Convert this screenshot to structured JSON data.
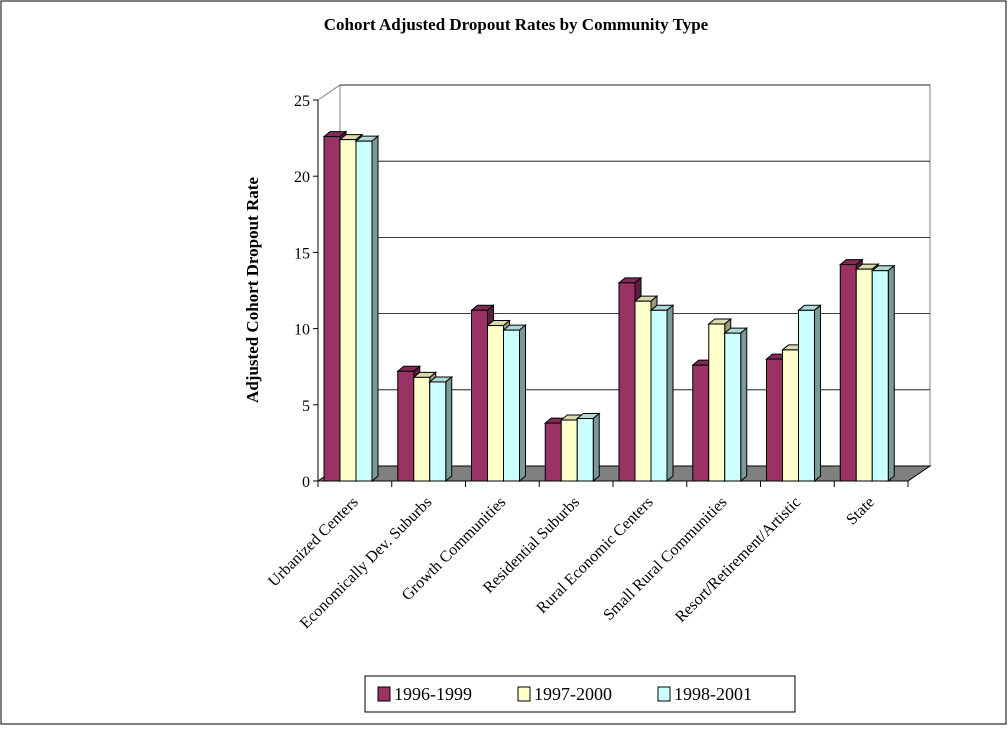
{
  "chart_data": {
    "type": "bar3d",
    "title": "Cohort Adjusted Dropout Rates by Community Type",
    "y_label": "Adjusted Cohort Dropout Rate",
    "categories": [
      "Urbanized Centers",
      "Economically Dev. Suburbs",
      "Growth Communities",
      "Residential Suburbs",
      "Rural Economic Centers",
      "Small Rural Communities",
      "Resort/Retirement/Artistic",
      "State"
    ],
    "series": [
      {
        "name": "1996-1999",
        "color": "#993366",
        "values": [
          22.6,
          7.2,
          11.2,
          3.8,
          13.0,
          7.6,
          8.0,
          14.2
        ]
      },
      {
        "name": "1997-2000",
        "color": "#ffffcc",
        "values": [
          22.4,
          6.8,
          10.2,
          4.0,
          11.8,
          10.3,
          8.6,
          13.9
        ]
      },
      {
        "name": "1998-2001",
        "color": "#ccffff",
        "values": [
          22.3,
          6.5,
          9.9,
          4.1,
          11.2,
          9.7,
          11.2,
          13.8
        ]
      }
    ],
    "ylim": [
      0,
      25
    ],
    "yticks": [
      0,
      5,
      10,
      15,
      20,
      25
    ],
    "grid": true,
    "legend": "bottom"
  }
}
